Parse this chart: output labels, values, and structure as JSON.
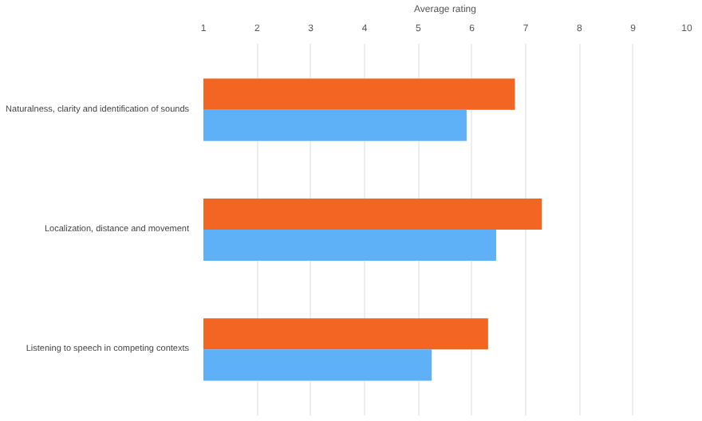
{
  "chart_data": {
    "type": "bar",
    "orientation": "horizontal",
    "xlabel": "Average rating",
    "categories": [
      "Naturalness, clarity and identification of sounds",
      "Localization, distance and movement",
      "Listening to speech in competing contexts"
    ],
    "series": [
      {
        "color": "#f26522",
        "values": [
          6.8,
          7.3,
          6.3
        ]
      },
      {
        "color": "#5eb0f7",
        "values": [
          5.9,
          6.45,
          5.25
        ]
      }
    ],
    "xlim": [
      1,
      10
    ],
    "xticks": [
      1,
      2,
      3,
      4,
      5,
      6,
      7,
      8,
      9,
      10
    ],
    "grid": "x"
  }
}
